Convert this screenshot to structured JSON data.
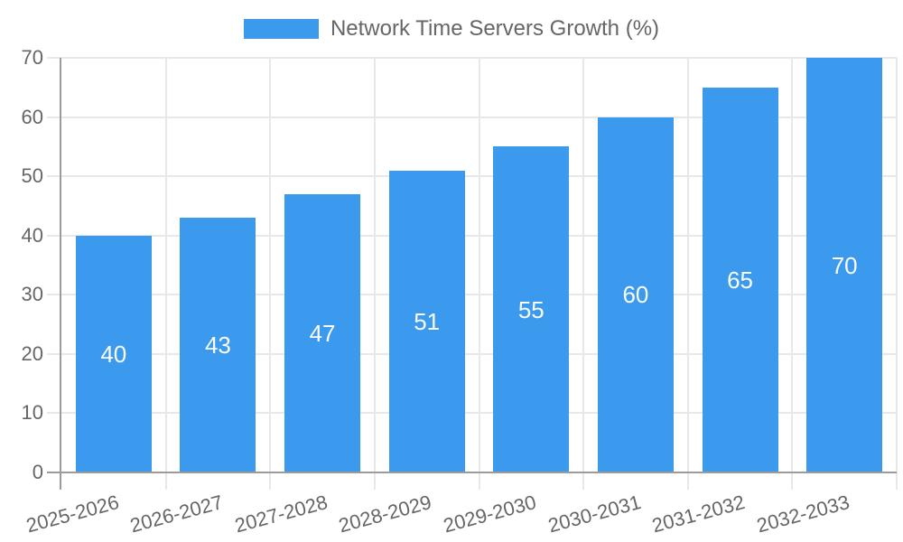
{
  "chart_data": {
    "type": "bar",
    "title": "Network Time Servers Growth (%)",
    "categories": [
      "2025-2026",
      "2026-2027",
      "2027-2028",
      "2028-2029",
      "2029-2030",
      "2030-2031",
      "2031-2032",
      "2032-2033"
    ],
    "values": [
      40,
      43,
      47,
      51,
      55,
      60,
      65,
      70
    ],
    "xlabel": "",
    "ylabel": "",
    "ylim": [
      0,
      70
    ],
    "yticks": [
      0,
      10,
      20,
      30,
      40,
      50,
      60,
      70
    ],
    "grid": true,
    "legend_position": "top-center",
    "colors": {
      "bar": "#3B9AEE",
      "bar_value_text": "#FCFCFC",
      "grid_line": "#E8E8E8",
      "axis_line": "#9B9B9B",
      "tick_label": "#666666",
      "legend_text": "#666666",
      "background": "#FFFFFF"
    }
  }
}
